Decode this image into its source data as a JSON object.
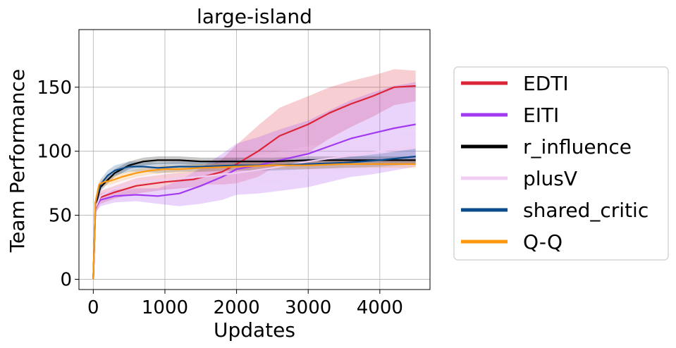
{
  "chart_data": {
    "type": "line",
    "title": "large-island",
    "xlabel": "Updates",
    "ylabel": "Team Performance",
    "xlim": [
      -200,
      4700
    ],
    "ylim": [
      -8,
      195
    ],
    "xticks": [
      0,
      1000,
      2000,
      3000,
      4000
    ],
    "yticks": [
      0,
      50,
      100,
      150
    ],
    "grid": true,
    "legend_position": "outside-right",
    "series": [
      {
        "name": "EDTI",
        "color": "#dc2438",
        "x": [
          0,
          30,
          100,
          300,
          600,
          1000,
          1400,
          1600,
          1800,
          2000,
          2300,
          2600,
          3000,
          3300,
          3600,
          3900,
          4200,
          4500
        ],
        "y": [
          0,
          55,
          64,
          68,
          73,
          76,
          78,
          81,
          84,
          90,
          100,
          112,
          121,
          130,
          137,
          143,
          150,
          151
        ],
        "band": [
          0,
          4,
          5,
          5,
          6,
          6,
          6,
          7,
          10,
          15,
          20,
          22,
          22,
          20,
          18,
          16,
          14,
          12
        ]
      },
      {
        "name": "EITI",
        "color": "#a13af0",
        "x": [
          0,
          30,
          100,
          300,
          600,
          900,
          1200,
          1500,
          1800,
          2000,
          2300,
          2600,
          3000,
          3300,
          3600,
          3900,
          4200,
          4500
        ],
        "y": [
          0,
          56,
          62,
          65,
          66,
          65,
          67,
          73,
          80,
          86,
          89,
          93,
          98,
          104,
          110,
          114,
          118,
          121
        ],
        "band": [
          0,
          4,
          5,
          5,
          5,
          6,
          10,
          14,
          18,
          20,
          22,
          24,
          26,
          28,
          30,
          32,
          33,
          33
        ]
      },
      {
        "name": "r_influence",
        "color": "#000000",
        "x": [
          0,
          30,
          100,
          300,
          500,
          700,
          900,
          1200,
          1500,
          1800,
          2100,
          2500,
          3000,
          3500,
          4000,
          4500
        ],
        "y": [
          0,
          57,
          72,
          83,
          89,
          92,
          93,
          93,
          92,
          92,
          92,
          92,
          93,
          93,
          93,
          93
        ],
        "band": [
          0,
          3,
          3,
          3,
          3,
          3,
          3,
          3,
          3,
          3,
          3,
          3,
          3,
          3,
          3,
          3
        ]
      },
      {
        "name": "plusV",
        "color": "#f2cdf3",
        "x": [
          0,
          30,
          100,
          300,
          600,
          1000,
          1500,
          2000,
          2500,
          3000,
          3500,
          4000,
          4500
        ],
        "y": [
          0,
          56,
          65,
          71,
          76,
          78,
          80,
          83,
          87,
          92,
          96,
          100,
          103
        ],
        "band": [
          0,
          4,
          5,
          5,
          5,
          6,
          8,
          10,
          12,
          12,
          12,
          12,
          12
        ]
      },
      {
        "name": "shared_critic",
        "color": "#0a4b8c",
        "x": [
          0,
          30,
          100,
          200,
          300,
          500,
          700,
          900,
          1200,
          1500,
          2000,
          2500,
          3000,
          3500,
          4000,
          4500
        ],
        "y": [
          0,
          60,
          74,
          81,
          85,
          88,
          88,
          87,
          88,
          88,
          89,
          89,
          90,
          91,
          93,
          96
        ],
        "band": [
          0,
          4,
          4,
          4,
          4,
          4,
          4,
          4,
          4,
          4,
          4,
          4,
          4,
          4,
          5,
          6
        ]
      },
      {
        "name": "Q-Q",
        "color": "#ff9811",
        "x": [
          0,
          30,
          80,
          150,
          250,
          400,
          600,
          800,
          1000,
          1200,
          1500,
          2000,
          2500,
          3000,
          3500,
          4000,
          4500
        ],
        "y": [
          0,
          60,
          74,
          76,
          77,
          80,
          83,
          85,
          86,
          86,
          87,
          88,
          89,
          89,
          90,
          90,
          90
        ],
        "band": [
          0,
          3,
          3,
          3,
          3,
          3,
          3,
          3,
          3,
          3,
          3,
          3,
          3,
          3,
          3,
          3,
          3
        ]
      }
    ]
  }
}
